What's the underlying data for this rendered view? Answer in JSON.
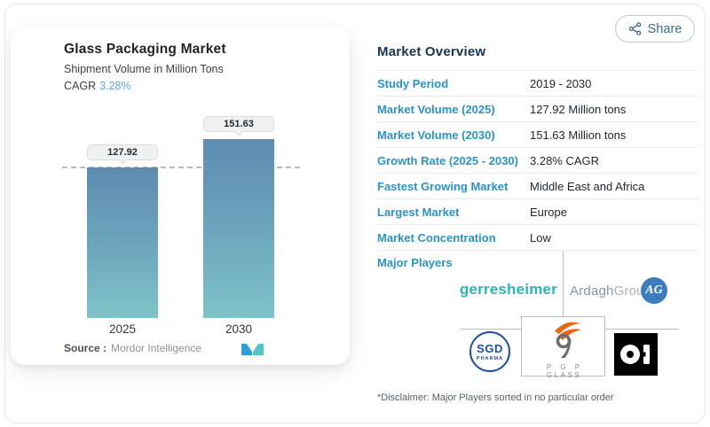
{
  "share": {
    "label": "Share",
    "icon": "share-nodes-icon"
  },
  "chart_card": {
    "title": "Glass Packaging Market",
    "subtitle": "Shipment Volume in Million Tons",
    "cagr_label": "CAGR",
    "cagr_value": "3.28%",
    "source_label": "Source :",
    "source_value": "Mordor Intelligence",
    "source_logo": "mordor-intelligence-m-icon"
  },
  "chart_data": {
    "type": "bar",
    "categories": [
      "2025",
      "2030"
    ],
    "values": [
      127.92,
      151.63
    ],
    "value_labels": [
      "127.92",
      "151.63"
    ],
    "title": "Glass Packaging Market",
    "xlabel": "",
    "ylabel": "Shipment Volume in Million Tons",
    "unit": "Million Tons",
    "reference_line_value": 127.92,
    "reference_line_style": "dashed",
    "grid": false,
    "legend": false,
    "bar_gradient_top": "#5d8cb1",
    "bar_gradient_bottom": "#7ec4c9"
  },
  "overview": {
    "title": "Market Overview",
    "rows": [
      {
        "label": "Study Period",
        "value": "2019 - 2030"
      },
      {
        "label": "Market Volume (2025)",
        "value": "127.92 Million tons"
      },
      {
        "label": "Market Volume (2030)",
        "value": "151.63 Million tons"
      },
      {
        "label": "Growth Rate (2025 - 2030)",
        "value": "3.28% CAGR"
      },
      {
        "label": "Fastest Growing Market",
        "value": "Middle East and Africa"
      },
      {
        "label": "Largest Market",
        "value": "Europe"
      },
      {
        "label": "Market Concentration",
        "value": "Low"
      }
    ],
    "major_players_label": "Major Players",
    "disclaimer": "*Disclaimer: Major Players sorted in no particular order"
  },
  "players": {
    "gerresheimer": "gerresheimer",
    "ardagh_word1": "Ardagh",
    "ardagh_word2": "Group",
    "ag_monogram": "AG",
    "sgd_line1": "SGD",
    "sgd_line2": "PHARMA",
    "pgp_line1": "P G P",
    "pgp_line2": "GLASS",
    "oi_name": "O-I"
  },
  "colors": {
    "label_blue": "#2a93c5",
    "header_navy": "#17344f",
    "cagr_blue": "#61a6c8",
    "gerresheimer_teal": "#2db5b2",
    "ardagh_blue": "#3e7dbd",
    "sgd_blue": "#1c4f9c",
    "pgp_orange": "#e8671b",
    "pgp_gray": "#6d6e71",
    "divider_gray": "#e9ebed",
    "connector_gray": "#b9bdbf",
    "dashed_line": "#b4bbbf"
  }
}
